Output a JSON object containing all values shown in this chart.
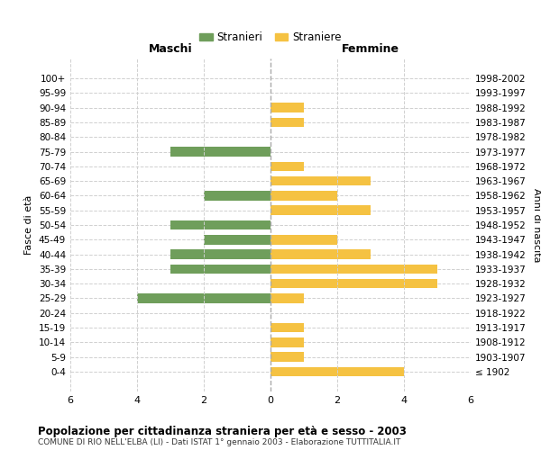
{
  "age_groups": [
    "100+",
    "95-99",
    "90-94",
    "85-89",
    "80-84",
    "75-79",
    "70-74",
    "65-69",
    "60-64",
    "55-59",
    "50-54",
    "45-49",
    "40-44",
    "35-39",
    "30-34",
    "25-29",
    "20-24",
    "15-19",
    "10-14",
    "5-9",
    "0-4"
  ],
  "birth_years": [
    "≤ 1902",
    "1903-1907",
    "1908-1912",
    "1913-1917",
    "1918-1922",
    "1923-1927",
    "1928-1932",
    "1933-1937",
    "1938-1942",
    "1943-1947",
    "1948-1952",
    "1953-1957",
    "1958-1962",
    "1963-1967",
    "1968-1972",
    "1973-1977",
    "1978-1982",
    "1983-1987",
    "1988-1992",
    "1993-1997",
    "1998-2002"
  ],
  "maschi": [
    0,
    0,
    0,
    0,
    0,
    3,
    0,
    0,
    2,
    0,
    3,
    2,
    3,
    3,
    0,
    4,
    0,
    0,
    0,
    0,
    0
  ],
  "femmine": [
    0,
    0,
    1,
    1,
    0,
    0,
    1,
    3,
    2,
    3,
    0,
    2,
    3,
    5,
    5,
    1,
    0,
    1,
    1,
    1,
    4
  ],
  "color_maschi": "#6f9e5b",
  "color_femmine": "#f5c242",
  "title": "Popolazione per cittadinanza straniera per età e sesso - 2003",
  "subtitle": "COMUNE DI RIO NELL'ELBA (LI) - Dati ISTAT 1° gennaio 2003 - Elaborazione TUTTITALIA.IT",
  "xlabel_left": "Maschi",
  "xlabel_right": "Femmine",
  "ylabel_left": "Fasce di età",
  "ylabel_right": "Anni di nascita",
  "legend_stranieri": "Stranieri",
  "legend_straniere": "Straniere",
  "xlim": 6,
  "background_color": "#ffffff",
  "grid_color": "#d0d0d0"
}
